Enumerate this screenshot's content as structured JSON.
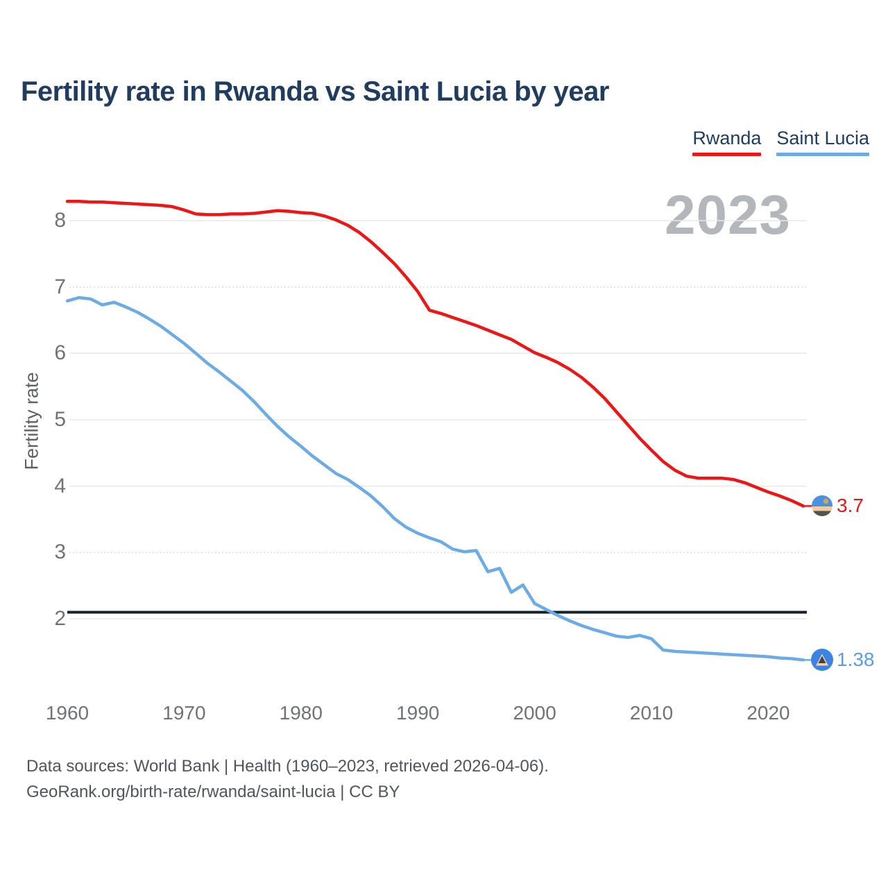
{
  "header": {
    "title": "Fertility rate in Rwanda vs Saint Lucia by year"
  },
  "legend": {
    "items": [
      {
        "label": "Rwanda",
        "color": "#f01515"
      },
      {
        "label": "Saint Lucia",
        "color": "#6babe6"
      }
    ]
  },
  "footer": {
    "line1": "Data sources: World Bank | Health (1960–2023, retrieved 2026-04-06).",
    "line2": "GeoRank.org/birth-rate/rwanda/saint-lucia | CC BY"
  },
  "chart_data": {
    "type": "line",
    "title": "Fertility rate in Rwanda vs Saint Lucia by year",
    "xlabel": "",
    "ylabel": "Fertility rate",
    "watermark": "2023",
    "grid": "horizontal",
    "legend_position": "top-right",
    "xlim": [
      1960,
      2023
    ],
    "ylim": [
      1.1,
      8.6
    ],
    "x_ticks": [
      1960,
      1970,
      1980,
      1990,
      2000,
      2010,
      2020
    ],
    "y_ticks": [
      2,
      3,
      4,
      5,
      6,
      7,
      8
    ],
    "dotted_gridlines": [
      3,
      7
    ],
    "reference_line": {
      "value": 2.1,
      "color": "#14212e"
    },
    "x": [
      1960,
      1961,
      1962,
      1963,
      1964,
      1965,
      1966,
      1967,
      1968,
      1969,
      1970,
      1971,
      1972,
      1973,
      1974,
      1975,
      1976,
      1977,
      1978,
      1979,
      1980,
      1981,
      1982,
      1983,
      1984,
      1985,
      1986,
      1987,
      1988,
      1989,
      1990,
      1991,
      1992,
      1993,
      1994,
      1995,
      1996,
      1997,
      1998,
      1999,
      2000,
      2001,
      2002,
      2003,
      2004,
      2005,
      2006,
      2007,
      2008,
      2009,
      2010,
      2011,
      2012,
      2013,
      2014,
      2015,
      2016,
      2017,
      2018,
      2019,
      2020,
      2021,
      2022,
      2023
    ],
    "series": [
      {
        "name": "Rwanda",
        "color": "#f01515",
        "label_color": "#f01515",
        "end_label": "3.7",
        "flag_icon": "rwanda-flag-icon",
        "values": [
          8.29,
          8.29,
          8.28,
          8.28,
          8.27,
          8.26,
          8.25,
          8.24,
          8.23,
          8.21,
          8.16,
          8.1,
          8.09,
          8.09,
          8.1,
          8.1,
          8.11,
          8.13,
          8.15,
          8.14,
          8.12,
          8.11,
          8.07,
          8.01,
          7.93,
          7.82,
          7.68,
          7.52,
          7.35,
          7.15,
          6.93,
          6.65,
          6.6,
          6.54,
          6.48,
          6.42,
          6.35,
          6.28,
          6.21,
          6.11,
          6.01,
          5.94,
          5.86,
          5.76,
          5.64,
          5.49,
          5.32,
          5.12,
          4.92,
          4.72,
          4.54,
          4.37,
          4.24,
          4.15,
          4.12,
          4.12,
          4.12,
          4.1,
          4.05,
          3.98,
          3.91,
          3.85,
          3.78,
          3.7
        ]
      },
      {
        "name": "Saint Lucia",
        "color": "#6babe6",
        "label_color": "#5b9de8",
        "end_label": "1.38",
        "flag_icon": "saint-lucia-flag-icon",
        "values": [
          6.79,
          6.84,
          6.82,
          6.73,
          6.77,
          6.7,
          6.62,
          6.52,
          6.41,
          6.28,
          6.15,
          6.0,
          5.85,
          5.72,
          5.58,
          5.44,
          5.27,
          5.08,
          4.9,
          4.74,
          4.6,
          4.45,
          4.32,
          4.19,
          4.1,
          3.98,
          3.85,
          3.69,
          3.51,
          3.38,
          3.29,
          3.22,
          3.16,
          3.05,
          3.01,
          3.03,
          2.71,
          2.76,
          2.4,
          2.51,
          2.23,
          2.14,
          2.05,
          1.97,
          1.9,
          1.84,
          1.79,
          1.74,
          1.72,
          1.75,
          1.7,
          1.53,
          1.51,
          1.5,
          1.49,
          1.48,
          1.47,
          1.46,
          1.45,
          1.44,
          1.43,
          1.41,
          1.4,
          1.38
        ]
      }
    ]
  }
}
